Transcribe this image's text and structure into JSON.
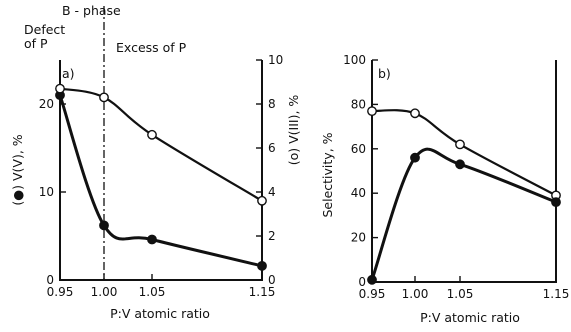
{
  "annotations": {
    "b_phase": "B - phase",
    "defect": "Defect\nof P",
    "excess": "Excess of P"
  },
  "chart_data": [
    {
      "type": "line",
      "panel": "a)",
      "xlabel": "P:V atomic ratio",
      "ylabel": "(●) V(V), %",
      "ylabel_right": "(o) V(III), %",
      "x_ticks": [
        "0.95",
        "1.00",
        "1.05",
        "1.15"
      ],
      "x_tick_values": [
        0.95,
        1.0,
        1.05,
        1.15
      ],
      "y_ticks": [
        "0",
        "10",
        "20"
      ],
      "y_tick_values": [
        0,
        10,
        20
      ],
      "y_right_ticks": [
        "0",
        "2",
        "4",
        "6",
        "8",
        "10"
      ],
      "y_right_tick_values": [
        0,
        2,
        4,
        6,
        8,
        10
      ],
      "ylim": [
        0,
        25
      ],
      "ylim_right": [
        0,
        10
      ],
      "series": [
        {
          "marker": "filled",
          "axis": "left",
          "x": [
            0.95,
            1.0,
            1.05,
            1.15
          ],
          "y": [
            21.0,
            6.2,
            4.6,
            1.6
          ]
        },
        {
          "marker": "open",
          "axis": "right",
          "x": [
            0.95,
            1.0,
            1.05,
            1.15
          ],
          "y": [
            8.7,
            8.3,
            6.6,
            3.6
          ]
        }
      ]
    },
    {
      "type": "line",
      "panel": "b)",
      "xlabel": "P:V atomic ratio",
      "ylabel": "Selectivity, %",
      "x_ticks": [
        "0.95",
        "1.00",
        "1.05",
        "1.15"
      ],
      "x_tick_values": [
        0.95,
        1.0,
        1.05,
        1.15
      ],
      "y_ticks": [
        "0",
        "20",
        "40",
        "60",
        "80",
        "100"
      ],
      "y_tick_values": [
        0,
        20,
        40,
        60,
        80,
        100
      ],
      "ylim": [
        0,
        100
      ],
      "series": [
        {
          "marker": "open",
          "x": [
            0.95,
            1.0,
            1.05,
            1.15
          ],
          "y": [
            77,
            76,
            62,
            39
          ]
        },
        {
          "marker": "filled",
          "x": [
            0.95,
            1.0,
            1.05,
            1.15
          ],
          "y": [
            1,
            56,
            53,
            36
          ]
        }
      ]
    }
  ]
}
